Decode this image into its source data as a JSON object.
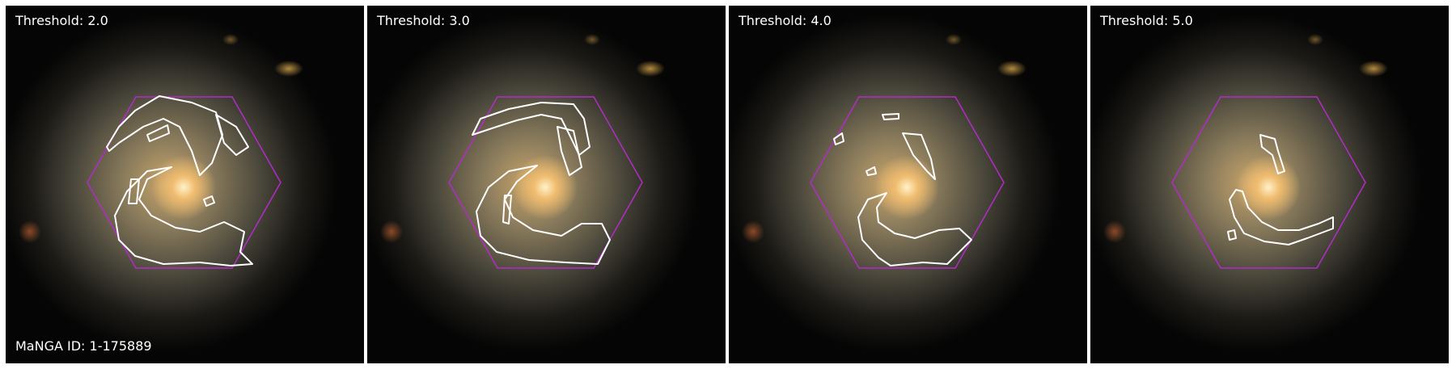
{
  "panels": [
    {
      "label": "Threshold: 2.0"
    },
    {
      "label": "Threshold: 3.0"
    },
    {
      "label": "Threshold: 4.0"
    },
    {
      "label": "Threshold: 5.0"
    }
  ],
  "id_label": "MaNGA ID: 1-175889",
  "colors": {
    "background": "#ffffff",
    "hexagon": "#b22cc8",
    "contour": "#ffffff",
    "galaxy_core": "#ffe0a0",
    "galaxy_halo": "#6f6a55"
  }
}
